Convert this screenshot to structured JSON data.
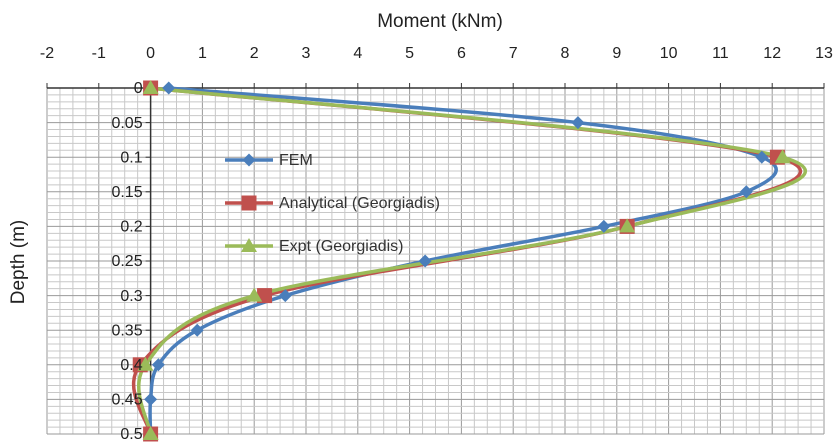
{
  "chart_data": {
    "type": "line",
    "title": "",
    "xlabel": "Moment (kNm)",
    "ylabel": "Depth (m)",
    "x_axis_position": "top",
    "y_axis_inverted": true,
    "xlim": [
      -2,
      13
    ],
    "ylim": [
      0,
      0.5
    ],
    "x_ticks": [
      "-2",
      "-1",
      "0",
      "1",
      "2",
      "3",
      "4",
      "5",
      "6",
      "7",
      "8",
      "9",
      "10",
      "11",
      "12",
      "13"
    ],
    "y_ticks": [
      "0",
      "0.05",
      "0.1",
      "0.15",
      "0.2",
      "0.25",
      "0.3",
      "0.35",
      "0.4",
      "0.45",
      "0.5"
    ],
    "grid": true,
    "legend_position": "center-left",
    "series": [
      {
        "name": "FEM",
        "color": "#4a7ebb",
        "marker": "diamond",
        "points": [
          {
            "x": 0.35,
            "y": 0
          },
          {
            "x": 8.25,
            "y": 0.05
          },
          {
            "x": 11.8,
            "y": 0.1
          },
          {
            "x": 11.5,
            "y": 0.15
          },
          {
            "x": 8.75,
            "y": 0.2
          },
          {
            "x": 5.3,
            "y": 0.25
          },
          {
            "x": 2.6,
            "y": 0.3
          },
          {
            "x": 0.9,
            "y": 0.35
          },
          {
            "x": 0.15,
            "y": 0.4
          },
          {
            "x": 0.0,
            "y": 0.45
          },
          {
            "x": 0.0,
            "y": 0.5
          }
        ]
      },
      {
        "name": "Analytical (Georgiadis)",
        "color": "#c0504d",
        "marker": "square",
        "points": [
          {
            "x": 0.0,
            "y": 0
          },
          {
            "x": 12.1,
            "y": 0.1
          },
          {
            "x": 9.2,
            "y": 0.2
          },
          {
            "x": 2.2,
            "y": 0.3
          },
          {
            "x": -0.2,
            "y": 0.4
          },
          {
            "x": 0.0,
            "y": 0.5
          }
        ]
      },
      {
        "name": "Expt (Georgiadis)",
        "color": "#9bbb59",
        "marker": "triangle",
        "points": [
          {
            "x": 0.0,
            "y": 0
          },
          {
            "x": 12.2,
            "y": 0.1
          },
          {
            "x": 9.2,
            "y": 0.2
          },
          {
            "x": 2.0,
            "y": 0.3
          },
          {
            "x": -0.1,
            "y": 0.4
          },
          {
            "x": 0.0,
            "y": 0.5
          }
        ]
      }
    ]
  }
}
